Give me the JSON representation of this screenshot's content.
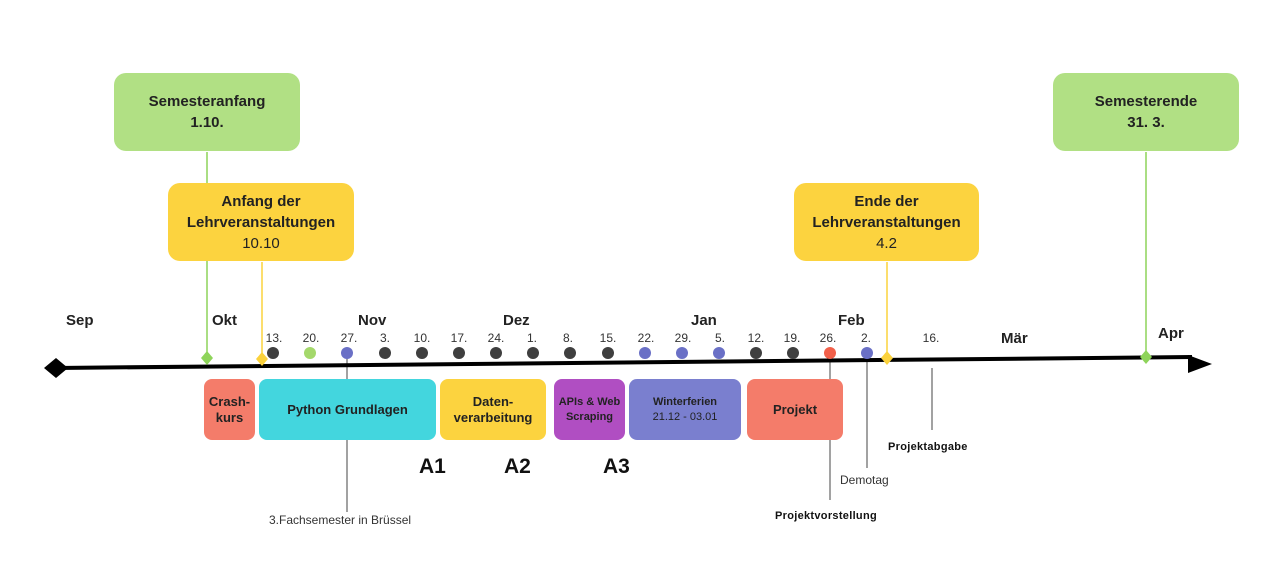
{
  "months": [
    "Sep",
    "Okt",
    "Nov",
    "Dez",
    "Jan",
    "Feb",
    "Mär",
    "Apr"
  ],
  "dates": [
    "13.",
    "20.",
    "27.",
    "3.",
    "10.",
    "17.",
    "24.",
    "1.",
    "8.",
    "15.",
    "22.",
    "29.",
    "5.",
    "12.",
    "19.",
    "26.",
    "2.",
    "16."
  ],
  "callouts": {
    "semesteranfang": {
      "line1": "Semesteranfang",
      "line2": "1.10."
    },
    "anfang_lv": {
      "line1": "Anfang der",
      "line2": "Lehrveranstaltungen",
      "line3": "10.10"
    },
    "ende_lv": {
      "line1": "Ende der",
      "line2": "Lehrveranstaltungen",
      "line3": "4.2"
    },
    "semesterende": {
      "line1": "Semesterende",
      "line2": "31. 3."
    }
  },
  "blocks": {
    "crashkurs": {
      "line1": "Crash-",
      "line2": "kurs",
      "color": "#f47c6a"
    },
    "python": {
      "label": "Python Grundlagen",
      "color": "#43d6de"
    },
    "datenverarbeitung": {
      "line1": "Daten-",
      "line2": "verarbeitung",
      "color": "#fcd33f"
    },
    "apis": {
      "line1": "APIs & Web",
      "line2": "Scraping",
      "color": "#b04ec2"
    },
    "winterferien": {
      "line1": "Winterferien",
      "line2": "21.12 - 03.01",
      "color": "#7a7fcf"
    },
    "projekt": {
      "label": "Projekt",
      "color": "#f47c6a"
    }
  },
  "assignments": [
    "A1",
    "A2",
    "A3"
  ],
  "notes": {
    "bruessel": "3.Fachsemester in Brüssel",
    "projektvorstellung": "Projektvorstellung",
    "demotag": "Demotag",
    "projektabgabe": "Projektabgabe"
  },
  "colors": {
    "dot_dark": "#3f3f3f",
    "dot_green": "#a4d86b",
    "dot_blue": "#6a70c6",
    "dot_red": "#f2604a",
    "marker_green": "#8ed45a",
    "marker_yellow": "#fbd23c",
    "line_green": "#8ed45a",
    "line_yellow": "#fbd23c"
  }
}
